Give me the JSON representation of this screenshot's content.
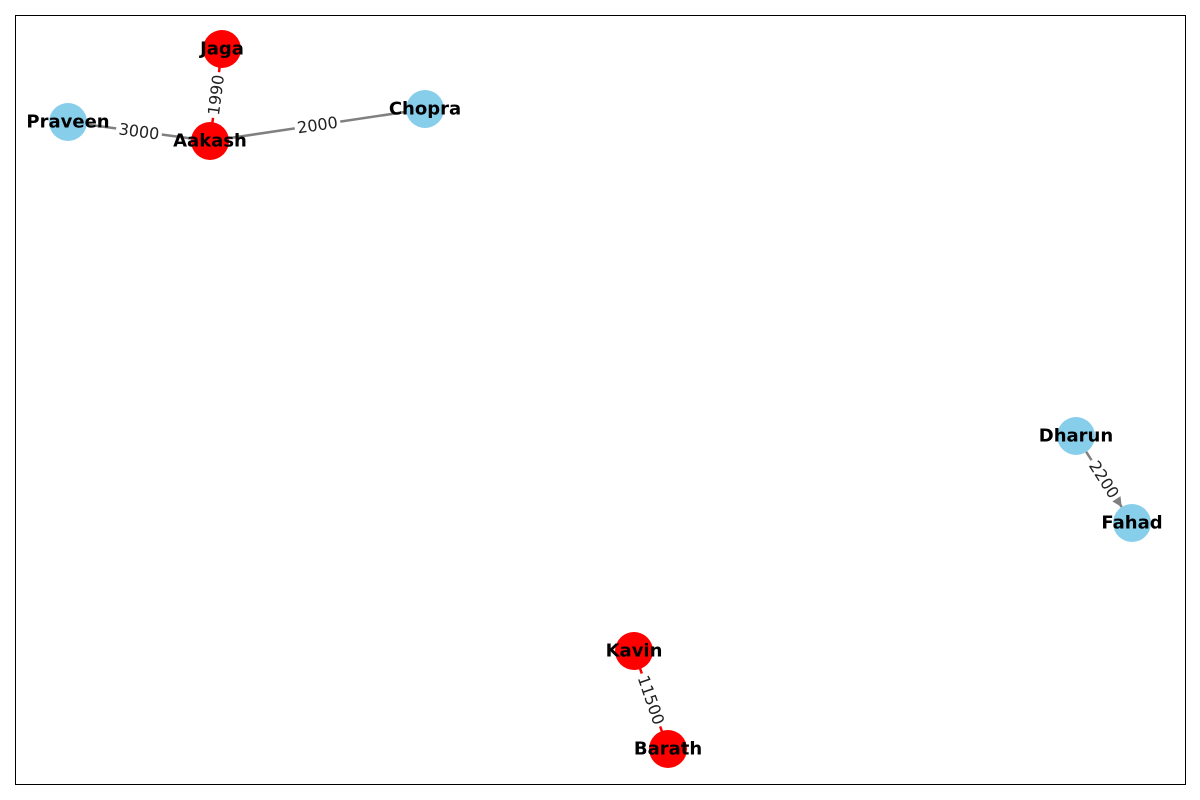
{
  "nodes": [
    {
      "id": "Jaga",
      "label": "Jaga",
      "color": "#ff0000"
    },
    {
      "id": "Aakash",
      "label": "Aakash",
      "color": "#ff0000"
    },
    {
      "id": "Praveen",
      "label": "Praveen",
      "color": "#87ceeb"
    },
    {
      "id": "Chopra",
      "label": "Chopra",
      "color": "#87ceeb"
    },
    {
      "id": "Dharun",
      "label": "Dharun",
      "color": "#87ceeb"
    },
    {
      "id": "Fahad",
      "label": "Fahad",
      "color": "#87ceeb"
    },
    {
      "id": "Kavin",
      "label": "Kavin",
      "color": "#ff0000"
    },
    {
      "id": "Barath",
      "label": "Barath",
      "color": "#ff0000"
    }
  ],
  "edges": [
    {
      "source": "Aakash",
      "target": "Jaga",
      "label": "1990",
      "color": "#ff0000",
      "arrow": false
    },
    {
      "source": "Praveen",
      "target": "Aakash",
      "label": "3000",
      "color": "#808080",
      "arrow": false
    },
    {
      "source": "Aakash",
      "target": "Chopra",
      "label": "2000",
      "color": "#808080",
      "arrow": false
    },
    {
      "source": "Dharun",
      "target": "Fahad",
      "label": "2200",
      "color": "#808080",
      "arrow": true
    },
    {
      "source": "Kavin",
      "target": "Barath",
      "label": "11500",
      "color": "#ff0000",
      "arrow": false
    }
  ]
}
